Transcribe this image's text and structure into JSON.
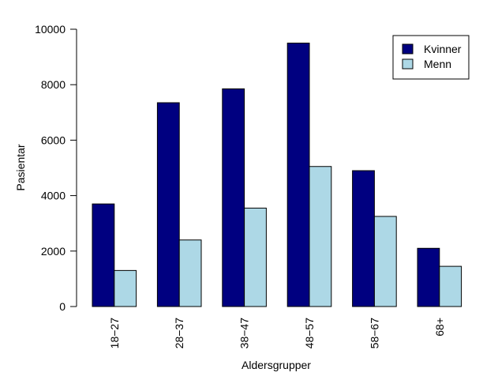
{
  "chart_data": {
    "type": "bar",
    "title": "",
    "xlabel": "Aldersgrupper",
    "ylabel": "Pasientar",
    "categories": [
      "18−27",
      "28−37",
      "38−47",
      "48−57",
      "58−67",
      "68+"
    ],
    "series": [
      {
        "name": "Kvinner",
        "color": "#000080",
        "values": [
          3700,
          7350,
          7850,
          9500,
          4900,
          2100
        ]
      },
      {
        "name": "Menn",
        "color": "#add8e6",
        "values": [
          1300,
          2400,
          3550,
          5050,
          3250,
          1450
        ]
      }
    ],
    "ylim": [
      0,
      10000
    ],
    "yticks": [
      "0",
      "2000",
      "4000",
      "6000",
      "8000",
      "10000"
    ],
    "grid": false,
    "legend_position": "top-right"
  }
}
